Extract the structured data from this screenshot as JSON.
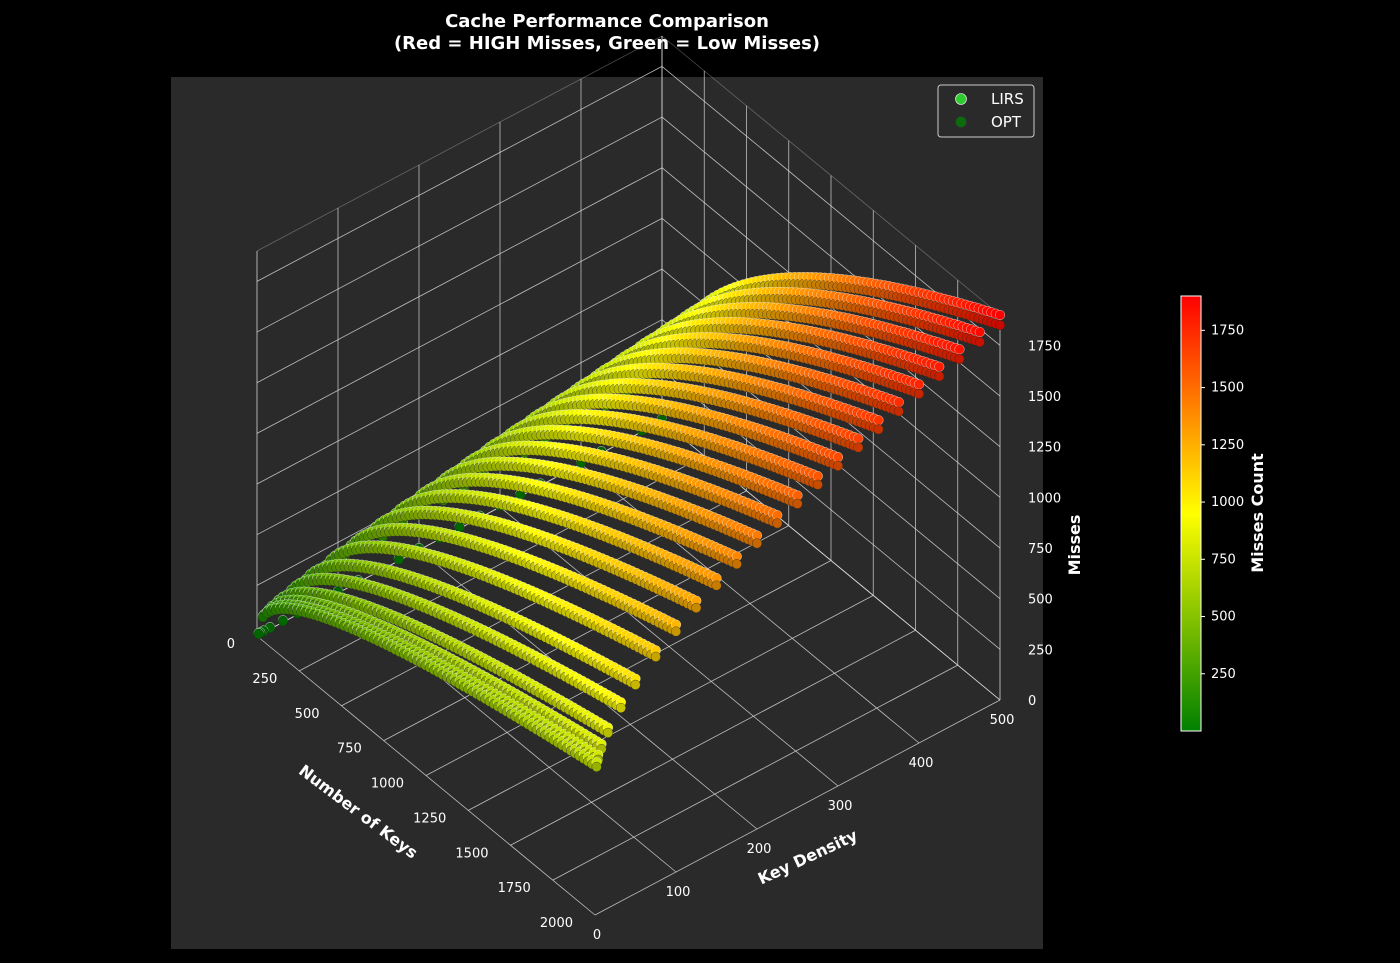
{
  "chart_data": {
    "type": "scatter",
    "projection": "3d",
    "title": [
      "Cache Performance Comparison",
      "(Red = HIGH Misses, Green = Low Misses)"
    ],
    "xlabel": "Number of Keys",
    "ylabel": "Key Density",
    "zlabel": "Misses",
    "xlim": [
      0,
      2000
    ],
    "ylim": [
      0,
      500
    ],
    "zlim": [
      0,
      1900
    ],
    "x_ticks": [
      0,
      250,
      500,
      750,
      1000,
      1250,
      1500,
      1750,
      2000
    ],
    "y_ticks": [
      0,
      100,
      200,
      300,
      400,
      500
    ],
    "z_ticks": [
      0,
      250,
      500,
      750,
      1000,
      1250,
      1500,
      1750
    ],
    "grid": true,
    "legend_position": "top-right",
    "series": [
      {
        "name": "LIRS",
        "marker_color": "#2ecc2e",
        "x_range": [
          0,
          2000
        ],
        "densities": [
          2,
          4,
          8,
          16,
          32,
          50,
          75,
          100,
          125,
          150,
          175,
          200,
          225,
          250,
          275,
          300,
          325,
          350,
          375,
          400,
          425,
          450,
          475,
          500
        ],
        "z_min": 10,
        "z_max": 1900
      },
      {
        "name": "OPT",
        "marker_color": "#0b6b0b",
        "x_range": [
          0,
          2000
        ],
        "densities": [
          2,
          4,
          8,
          16,
          32,
          50,
          75,
          100,
          125,
          150,
          175,
          200,
          225,
          250,
          275,
          300,
          325,
          350,
          375,
          400,
          425,
          450,
          475,
          500
        ],
        "z_min": 5,
        "z_max": 1850
      }
    ],
    "colorbar": {
      "label": "Misses Count",
      "ticks": [
        250,
        500,
        750,
        1000,
        1250,
        1500,
        1750
      ],
      "range": [
        0,
        1900
      ],
      "colors": [
        "#008000",
        "#ffff00",
        "#ff8000",
        "#ff0000"
      ]
    },
    "colors": {
      "background": "#000000",
      "axes_background": "#2a2a2a",
      "grid": "#d8d8d8",
      "text": "#ffffff"
    }
  }
}
